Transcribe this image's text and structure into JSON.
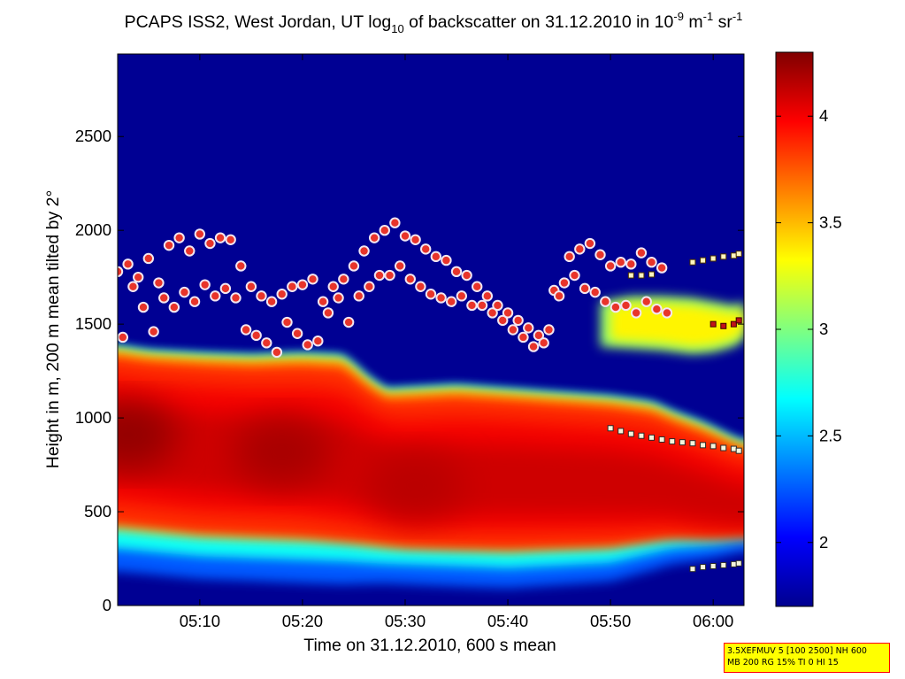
{
  "chart_data": {
    "type": "heatmap",
    "title": {
      "base": "PCAPS ISS2, West Jordan, UT log",
      "sub1": "10",
      "mid": " of backscatter on 31.12.2010 in 10",
      "sup1": "-9",
      "mid2": " m",
      "sup2": "-1",
      "mid3": " sr",
      "sup3": "-1"
    },
    "xlabel": "Time on 31.12.2010, 600 s mean",
    "ylabel": "Height in m, 200 m mean tilted by 2°",
    "xlim_minutes": [
      302,
      363
    ],
    "ylim": [
      0,
      2940
    ],
    "xticks": [
      {
        "minute": 310,
        "label": "05:10"
      },
      {
        "minute": 320,
        "label": "05:20"
      },
      {
        "minute": 330,
        "label": "05:30"
      },
      {
        "minute": 340,
        "label": "05:40"
      },
      {
        "minute": 350,
        "label": "05:50"
      },
      {
        "minute": 360,
        "label": "06:00"
      }
    ],
    "yticks": [
      0,
      500,
      1000,
      1500,
      2000,
      2500
    ],
    "colorbar": {
      "range": [
        1.7,
        4.3
      ],
      "ticks": [
        2,
        2.5,
        3,
        3.5,
        4
      ],
      "tick_labels": [
        "2",
        "2.5",
        "3",
        "3.5",
        "4"
      ],
      "colormap": "jet"
    },
    "background_value": 1.75,
    "aerosol_layer": {
      "top_height": [
        [
          302,
          1370
        ],
        [
          305,
          1345
        ],
        [
          310,
          1330
        ],
        [
          315,
          1320
        ],
        [
          320,
          1330
        ],
        [
          324,
          1320
        ],
        [
          326,
          1220
        ],
        [
          328,
          1140
        ],
        [
          335,
          1160
        ],
        [
          340,
          1140
        ],
        [
          345,
          1120
        ],
        [
          350,
          1100
        ],
        [
          354,
          1070
        ],
        [
          356,
          1020
        ],
        [
          359,
          960
        ],
        [
          362,
          880
        ],
        [
          363,
          860
        ]
      ],
      "bottom_height": [
        [
          302,
          270
        ],
        [
          310,
          230
        ],
        [
          320,
          210
        ],
        [
          330,
          190
        ],
        [
          340,
          170
        ],
        [
          350,
          200
        ],
        [
          356,
          280
        ],
        [
          360,
          300
        ],
        [
          363,
          330
        ]
      ],
      "core_height": [
        [
          302,
          880
        ],
        [
          310,
          820
        ],
        [
          320,
          790
        ],
        [
          326,
          720
        ],
        [
          330,
          650
        ],
        [
          335,
          650
        ],
        [
          340,
          660
        ],
        [
          345,
          650
        ],
        [
          350,
          640
        ],
        [
          355,
          600
        ],
        [
          360,
          520
        ],
        [
          363,
          480
        ]
      ],
      "cores": [
        {
          "minute": 303,
          "height": 910,
          "value": 4.25
        },
        {
          "minute": 318,
          "height": 820,
          "value": 4.2
        },
        {
          "minute": 331,
          "height": 640,
          "value": 4.15
        }
      ]
    },
    "elevated_layer": {
      "time_range": [
        349,
        363
      ],
      "top": [
        [
          349,
          1620
        ],
        [
          352,
          1650
        ],
        [
          355,
          1650
        ],
        [
          358,
          1640
        ],
        [
          360,
          1620
        ],
        [
          362,
          1600
        ],
        [
          363,
          1620
        ]
      ],
      "bottom": [
        [
          349,
          1380
        ],
        [
          352,
          1370
        ],
        [
          355,
          1360
        ],
        [
          358,
          1340
        ],
        [
          360,
          1350
        ],
        [
          362,
          1380
        ],
        [
          363,
          1420
        ]
      ],
      "value": 3.35
    },
    "upper_layer_markers": [
      [
        302,
        1780
      ],
      [
        302.5,
        1430
      ],
      [
        303,
        1820
      ],
      [
        303.5,
        1700
      ],
      [
        304,
        1750
      ],
      [
        304.5,
        1590
      ],
      [
        305,
        1850
      ],
      [
        305.5,
        1460
      ],
      [
        306,
        1720
      ],
      [
        306.5,
        1640
      ],
      [
        307,
        1920
      ],
      [
        307.5,
        1590
      ],
      [
        308,
        1960
      ],
      [
        308.5,
        1670
      ],
      [
        309,
        1890
      ],
      [
        309.5,
        1620
      ],
      [
        310,
        1980
      ],
      [
        310.5,
        1710
      ],
      [
        311,
        1930
      ],
      [
        311.5,
        1650
      ],
      [
        312,
        1960
      ],
      [
        312.5,
        1690
      ],
      [
        313,
        1950
      ],
      [
        313.5,
        1640
      ],
      [
        314,
        1810
      ],
      [
        314.5,
        1470
      ],
      [
        315,
        1700
      ],
      [
        315.5,
        1440
      ],
      [
        316,
        1650
      ],
      [
        316.5,
        1400
      ],
      [
        317,
        1620
      ],
      [
        317.5,
        1350
      ],
      [
        318,
        1660
      ],
      [
        318.5,
        1510
      ],
      [
        319,
        1700
      ],
      [
        319.5,
        1450
      ],
      [
        320,
        1710
      ],
      [
        320.5,
        1390
      ],
      [
        321,
        1740
      ],
      [
        321.5,
        1410
      ],
      [
        322,
        1620
      ],
      [
        322.5,
        1560
      ],
      [
        323,
        1700
      ],
      [
        323.5,
        1640
      ],
      [
        324,
        1740
      ],
      [
        324.5,
        1510
      ],
      [
        325,
        1810
      ],
      [
        325.5,
        1650
      ],
      [
        326,
        1890
      ],
      [
        326.5,
        1700
      ],
      [
        327,
        1960
      ],
      [
        327.5,
        1760
      ],
      [
        328,
        2000
      ],
      [
        328.5,
        1760
      ],
      [
        329,
        2040
      ],
      [
        329.5,
        1810
      ],
      [
        330,
        1970
      ],
      [
        330.5,
        1740
      ],
      [
        331,
        1950
      ],
      [
        331.5,
        1700
      ],
      [
        332,
        1900
      ],
      [
        332.5,
        1660
      ],
      [
        333,
        1860
      ],
      [
        333.5,
        1640
      ],
      [
        334,
        1840
      ],
      [
        334.5,
        1620
      ],
      [
        335,
        1780
      ],
      [
        335.5,
        1650
      ],
      [
        336,
        1760
      ],
      [
        336.5,
        1600
      ],
      [
        337,
        1700
      ],
      [
        337.5,
        1600
      ],
      [
        338,
        1650
      ],
      [
        338.5,
        1560
      ],
      [
        339,
        1600
      ],
      [
        339.5,
        1520
      ],
      [
        340,
        1560
      ],
      [
        340.5,
        1470
      ],
      [
        341,
        1520
      ],
      [
        341.5,
        1430
      ],
      [
        342,
        1480
      ],
      [
        342.5,
        1380
      ],
      [
        343,
        1440
      ],
      [
        343.5,
        1400
      ],
      [
        344,
        1470
      ],
      [
        344.5,
        1680
      ],
      [
        345,
        1650
      ],
      [
        345.5,
        1720
      ],
      [
        346,
        1860
      ],
      [
        346.5,
        1760
      ],
      [
        347,
        1900
      ],
      [
        347.5,
        1690
      ],
      [
        348,
        1930
      ],
      [
        348.5,
        1670
      ],
      [
        349,
        1870
      ],
      [
        349.5,
        1620
      ],
      [
        350,
        1810
      ],
      [
        350.5,
        1590
      ],
      [
        351,
        1830
      ],
      [
        351.5,
        1600
      ],
      [
        352,
        1820
      ],
      [
        352.5,
        1560
      ],
      [
        353,
        1880
      ],
      [
        353.5,
        1620
      ],
      [
        354,
        1830
      ],
      [
        354.5,
        1580
      ],
      [
        355,
        1800
      ],
      [
        355.5,
        1560
      ]
    ],
    "lower_base_markers": [
      [
        350,
        945
      ],
      [
        351,
        930
      ],
      [
        352,
        915
      ],
      [
        353,
        905
      ],
      [
        354,
        895
      ],
      [
        355,
        885
      ],
      [
        356,
        875
      ],
      [
        357,
        870
      ],
      [
        358,
        865
      ],
      [
        359,
        855
      ],
      [
        360,
        850
      ],
      [
        361,
        840
      ],
      [
        362,
        835
      ],
      [
        362.5,
        825
      ]
    ],
    "surface_markers": [
      [
        358,
        195
      ],
      [
        359,
        205
      ],
      [
        360,
        210
      ],
      [
        361,
        215
      ],
      [
        362,
        220
      ],
      [
        362.5,
        225
      ]
    ],
    "elevated_top_markers": [
      [
        352,
        1760
      ],
      [
        353,
        1760
      ],
      [
        354,
        1765
      ],
      [
        358,
        1830
      ],
      [
        359,
        1840
      ],
      [
        360,
        1850
      ],
      [
        361,
        1860
      ],
      [
        362,
        1865
      ],
      [
        362.5,
        1875
      ]
    ],
    "elevated_base_markers": [
      [
        360,
        1500
      ],
      [
        361,
        1490
      ],
      [
        362,
        1500
      ],
      [
        362.5,
        1520
      ]
    ]
  },
  "info_box": {
    "line1": "3.5XEFMUV 5 [100 2500] NH 600",
    "line2": "MB 200 RG 15% TI 0 HI 15"
  }
}
